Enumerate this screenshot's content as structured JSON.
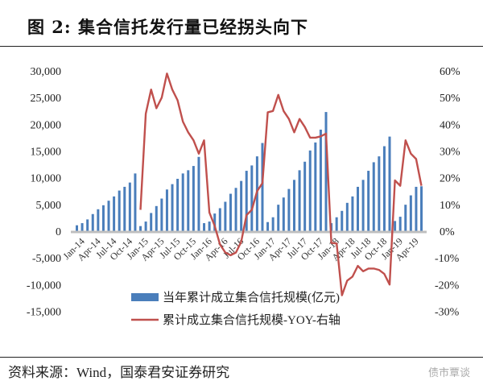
{
  "header": {
    "title": "图 2:  集合信托发行量已经拐头向下"
  },
  "footer": {
    "source": "资料来源：Wind，国泰君安证券研究",
    "watermark": "债市覃谈"
  },
  "colors": {
    "bar": "#4a7ebb",
    "line": "#c0504d",
    "axis": "#bfbfbf"
  },
  "chart_data": {
    "type": "bar+line",
    "title": "集合信托发行量已经拐头向下",
    "x_labels": [
      "Jan-14",
      "Apr-14",
      "Jul-14",
      "Oct-14",
      "Jan-15",
      "Apr-15",
      "Jul-15",
      "Oct-15",
      "Jan-16",
      "Apr-16",
      "Jul-16",
      "Oct-16",
      "Jan-17",
      "Apr-17",
      "Jul-17",
      "Oct-17",
      "Jan-18",
      "Apr-18",
      "Jul-18",
      "Oct-18",
      "Jan-19",
      "Apr-19"
    ],
    "x_label_interval_months": 3,
    "left_axis": {
      "ylim": [
        -15000,
        30000
      ],
      "ticks": [
        "-15,000",
        "-10,000",
        "-5,000",
        "0",
        "5,000",
        "10,000",
        "15,000",
        "20,000",
        "25,000",
        "30,000"
      ],
      "tick_values": [
        -15000,
        -10000,
        -5000,
        0,
        5000,
        10000,
        15000,
        20000,
        25000,
        30000
      ]
    },
    "right_axis": {
      "ylim": [
        -30,
        60
      ],
      "ticks": [
        "-30%",
        "-20%",
        "-10%",
        "0%",
        "10%",
        "20%",
        "30%",
        "40%",
        "50%",
        "60%"
      ],
      "tick_values": [
        -30,
        -20,
        -10,
        0,
        10,
        20,
        30,
        40,
        50,
        60
      ]
    },
    "series": [
      {
        "name": "当年累计成立集合信托规模(亿元)",
        "type": "bar",
        "axis": "left",
        "values": [
          1100,
          1500,
          2200,
          3200,
          4100,
          4850,
          5700,
          6500,
          7600,
          8300,
          9100,
          10800,
          950,
          1800,
          3400,
          4700,
          6100,
          7800,
          8800,
          9800,
          10800,
          11400,
          12200,
          13900,
          1500,
          1800,
          3300,
          4300,
          5500,
          7000,
          8100,
          9400,
          11300,
          12300,
          14000,
          16500,
          1700,
          2600,
          4950,
          6300,
          7900,
          9600,
          11400,
          13000,
          15100,
          16600,
          19000,
          22300,
          1500,
          2600,
          3800,
          5300,
          6500,
          8300,
          9600,
          11300,
          12900,
          14000,
          15900,
          17700,
          1900,
          2700,
          4950,
          6700,
          8300,
          8400
        ]
      },
      {
        "name": "累计成立集合信托规模-YOY-右轴",
        "type": "line",
        "axis": "right",
        "start_index": 12,
        "values": [
          8,
          44,
          53,
          46,
          50,
          59,
          53,
          49,
          41,
          37,
          34,
          29,
          34,
          7,
          2,
          -5,
          -8,
          -9,
          -8,
          -4,
          6,
          8,
          15,
          18,
          44.5,
          45,
          51,
          45,
          42,
          37,
          42,
          39,
          35,
          35,
          35.5,
          36.5,
          -4.4,
          -4.6,
          -24,
          -18.5,
          -17,
          -13,
          -15,
          -14,
          -14,
          -14.5,
          -16,
          -20,
          19,
          17,
          34,
          29,
          27,
          17
        ]
      }
    ],
    "legend": {
      "placement": "bottom-center",
      "entries": [
        "当年累计成立集合信托规模(亿元)",
        "累计成立集合信托规模-YOY-右轴"
      ]
    },
    "grid": false
  }
}
